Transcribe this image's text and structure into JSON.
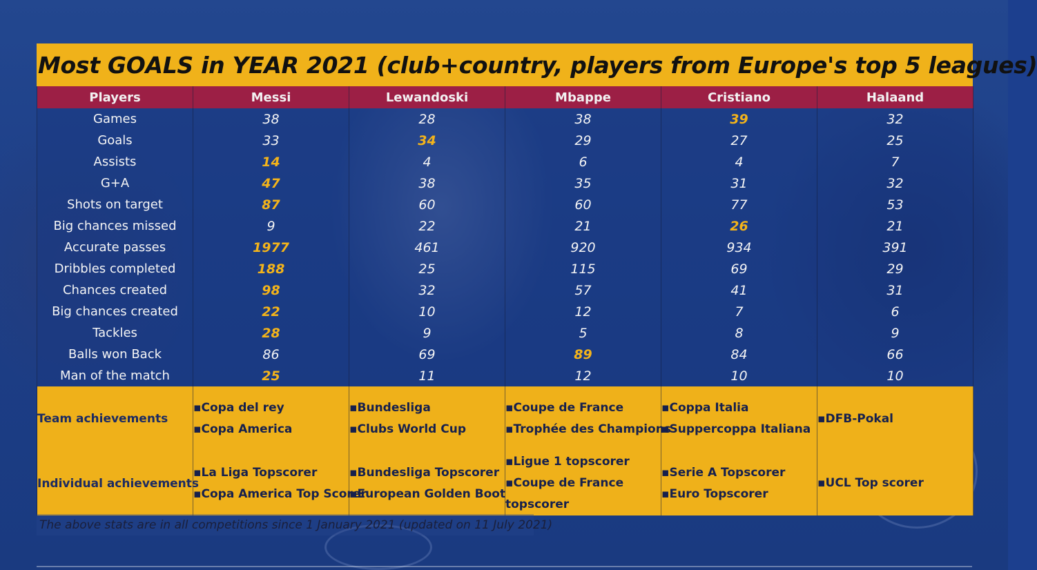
{
  "title": "Most GOALS in YEAR 2021 (club+country, players from Europe's top 5 leagues)",
  "columns": [
    "Players",
    "Messi",
    "Lewandoski",
    "Mbappe",
    "Cristiano",
    "Halaand"
  ],
  "stats": [
    {
      "label": "Games",
      "values": [
        "38",
        "28",
        "38",
        "39",
        "32"
      ],
      "best": [
        3
      ]
    },
    {
      "label": "Goals",
      "values": [
        "33",
        "34",
        "29",
        "27",
        "25"
      ],
      "best": [
        1
      ]
    },
    {
      "label": "Assists",
      "values": [
        "14",
        "4",
        "6",
        "4",
        "7"
      ],
      "best": [
        0
      ]
    },
    {
      "label": "G+A",
      "values": [
        "47",
        "38",
        "35",
        "31",
        "32"
      ],
      "best": [
        0
      ]
    },
    {
      "label": "Shots on target",
      "values": [
        "87",
        "60",
        "60",
        "77",
        "53"
      ],
      "best": [
        0
      ]
    },
    {
      "label": "Big chances missed",
      "values": [
        "9",
        "22",
        "21",
        "26",
        "21"
      ],
      "best": [
        3
      ]
    },
    {
      "label": "Accurate passes",
      "values": [
        "1977",
        "461",
        "920",
        "934",
        "391"
      ],
      "best": [
        0
      ]
    },
    {
      "label": "Dribbles completed",
      "values": [
        "188",
        "25",
        "115",
        "69",
        "29"
      ],
      "best": [
        0
      ]
    },
    {
      "label": "Chances created",
      "values": [
        "98",
        "32",
        "57",
        "41",
        "31"
      ],
      "best": [
        0
      ]
    },
    {
      "label": "Big chances created",
      "values": [
        "22",
        "10",
        "12",
        "7",
        "6"
      ],
      "best": [
        0
      ]
    },
    {
      "label": "Tackles",
      "values": [
        "28",
        "9",
        "5",
        "8",
        "9"
      ],
      "best": [
        0
      ]
    },
    {
      "label": "Balls won Back",
      "values": [
        "86",
        "69",
        "89",
        "84",
        "66"
      ],
      "best": [
        2
      ]
    },
    {
      "label": "Man of the match",
      "values": [
        "25",
        "11",
        "12",
        "10",
        "10"
      ],
      "best": [
        0
      ]
    }
  ],
  "team_achievements": {
    "label": "Team achievements",
    "values": [
      [
        "▪Copa del rey",
        "▪Copa America"
      ],
      [
        "▪Bundesliga",
        "▪Clubs World Cup"
      ],
      [
        "▪Coupe de France",
        "▪Trophée des Champions"
      ],
      [
        "▪Coppa Italia",
        "▪Suppercoppa Italiana"
      ],
      [
        "▪DFB-Pokal"
      ]
    ]
  },
  "individual_achievements": {
    "label": "Individual achievements",
    "values": [
      [
        "▪La Liga Topscorer",
        "▪Copa America Top Scorer"
      ],
      [
        "▪Bundesliga Topscorer",
        "▪European Golden Boot"
      ],
      [
        "▪Ligue 1 topscorer",
        "▪Coupe de France",
        "topscorer"
      ],
      [
        "▪Serie A Topscorer",
        "▪Euro Topscorer"
      ],
      [
        "▪UCL Top scorer"
      ]
    ]
  },
  "footnote": "The above stats are in all competitions since 1 January 2021 (updated on 11 July 2021)",
  "colors": {
    "title_bg": "#f0b21a",
    "header_bg": "#9c1f45",
    "highlight": "#f4b41a",
    "background": "#1c3f8e"
  }
}
